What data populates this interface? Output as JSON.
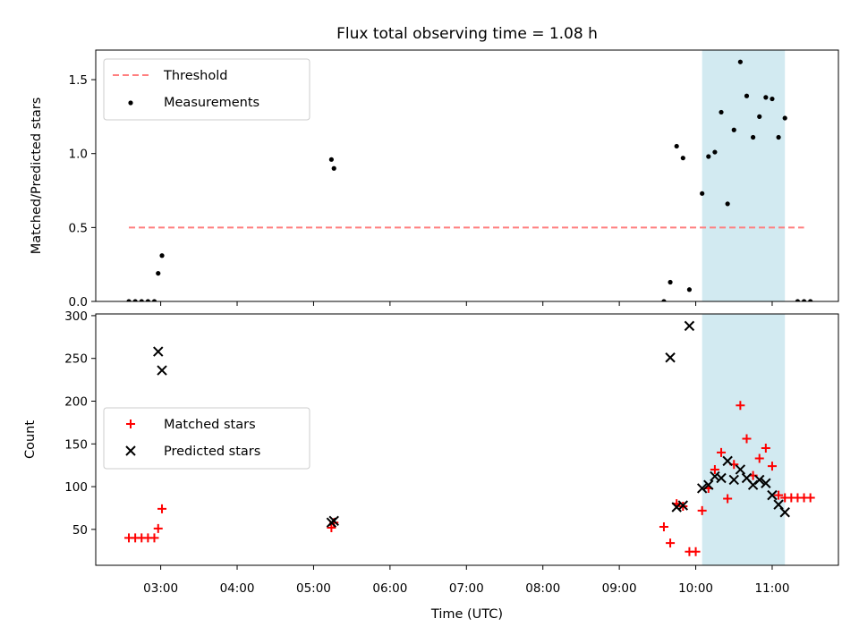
{
  "chart_data": [
    {
      "type": "scatter",
      "title": "Flux total observing time = 1.08 h",
      "xlabel": "",
      "ylabel": "Matched/Predicted stars",
      "ylim": [
        0,
        1.7
      ],
      "yticks": [
        0.0,
        0.5,
        1.0,
        1.5
      ],
      "ytick_labels": [
        "0.0",
        "0.5",
        "1.0",
        "1.5"
      ],
      "xlim": [
        "02:09",
        "11:52"
      ],
      "grid": false,
      "legend_position": "upper left",
      "highlight_band": {
        "x_start": "10:05",
        "x_end": "11:10",
        "color": "#add8e6"
      },
      "series": [
        {
          "name": "Threshold",
          "kind": "dashed-line",
          "color": "#ff7f7f",
          "x": [
            "02:35",
            "11:25"
          ],
          "y": [
            0.5,
            0.5
          ]
        },
        {
          "name": "Measurements",
          "kind": "dots",
          "color": "#000000",
          "x": [
            "02:35",
            "02:40",
            "02:45",
            "02:50",
            "02:55",
            "02:58",
            "03:01",
            "05:14",
            "05:16",
            "09:35",
            "09:40",
            "09:45",
            "09:50",
            "09:55",
            "10:05",
            "10:10",
            "10:15",
            "10:20",
            "10:25",
            "10:30",
            "10:35",
            "10:40",
            "10:45",
            "10:50",
            "10:55",
            "11:00",
            "11:05",
            "11:10",
            "11:20",
            "11:25",
            "11:30"
          ],
          "y": [
            0.0,
            0.0,
            0.0,
            0.0,
            0.0,
            0.19,
            0.31,
            0.96,
            0.9,
            0.0,
            0.13,
            1.05,
            0.97,
            0.08,
            0.73,
            0.98,
            1.01,
            1.28,
            0.66,
            1.16,
            1.62,
            1.39,
            1.11,
            1.25,
            1.38,
            1.37,
            1.11,
            1.24,
            0.0,
            0.0,
            0.0
          ]
        }
      ]
    },
    {
      "type": "scatter",
      "title": "",
      "xlabel": "Time (UTC)",
      "ylabel": "Count",
      "ylim": [
        8,
        302
      ],
      "yticks": [
        50,
        100,
        150,
        200,
        250,
        300
      ],
      "ytick_labels": [
        "50",
        "100",
        "150",
        "200",
        "250",
        "300"
      ],
      "xlim": [
        "02:09",
        "11:52"
      ],
      "xticks": [
        "03:00",
        "04:00",
        "05:00",
        "06:00",
        "07:00",
        "08:00",
        "09:00",
        "10:00",
        "11:00"
      ],
      "xtick_labels": [
        "03:00",
        "04:00",
        "05:00",
        "06:00",
        "07:00",
        "08:00",
        "09:00",
        "10:00",
        "11:00"
      ],
      "grid": false,
      "legend_position": "center left",
      "highlight_band": {
        "x_start": "10:05",
        "x_end": "11:10",
        "color": "#add8e6"
      },
      "series": [
        {
          "name": "Matched stars",
          "marker": "plus",
          "color": "#ff0000",
          "x": [
            "02:35",
            "02:40",
            "02:45",
            "02:50",
            "02:55",
            "02:58",
            "03:01",
            "05:14",
            "05:16",
            "09:35",
            "09:40",
            "09:45",
            "09:50",
            "09:55",
            "10:00",
            "10:05",
            "10:10",
            "10:15",
            "10:20",
            "10:25",
            "10:30",
            "10:35",
            "10:40",
            "10:45",
            "10:50",
            "10:55",
            "11:00",
            "11:05",
            "11:10",
            "11:15",
            "11:20",
            "11:25",
            "11:30"
          ],
          "y": [
            40,
            40,
            40,
            40,
            40,
            51,
            74,
            52,
            58,
            53,
            34,
            80,
            77,
            24,
            24,
            72,
            98,
            120,
            140,
            86,
            126,
            195,
            156,
            113,
            133,
            145,
            124,
            90,
            87,
            87,
            87,
            87,
            87
          ]
        },
        {
          "name": "Predicted stars",
          "marker": "x",
          "color": "#000000",
          "x": [
            "02:58",
            "03:01",
            "05:14",
            "05:16",
            "09:40",
            "09:45",
            "09:50",
            "09:55",
            "10:05",
            "10:10",
            "10:15",
            "10:20",
            "10:25",
            "10:30",
            "10:35",
            "10:40",
            "10:45",
            "10:50",
            "10:55",
            "11:00",
            "11:05",
            "11:10"
          ],
          "y": [
            258,
            236,
            58,
            60,
            251,
            76,
            78,
            288,
            98,
            102,
            112,
            110,
            130,
            108,
            120,
            110,
            102,
            108,
            104,
            90,
            79,
            70
          ]
        }
      ]
    }
  ]
}
